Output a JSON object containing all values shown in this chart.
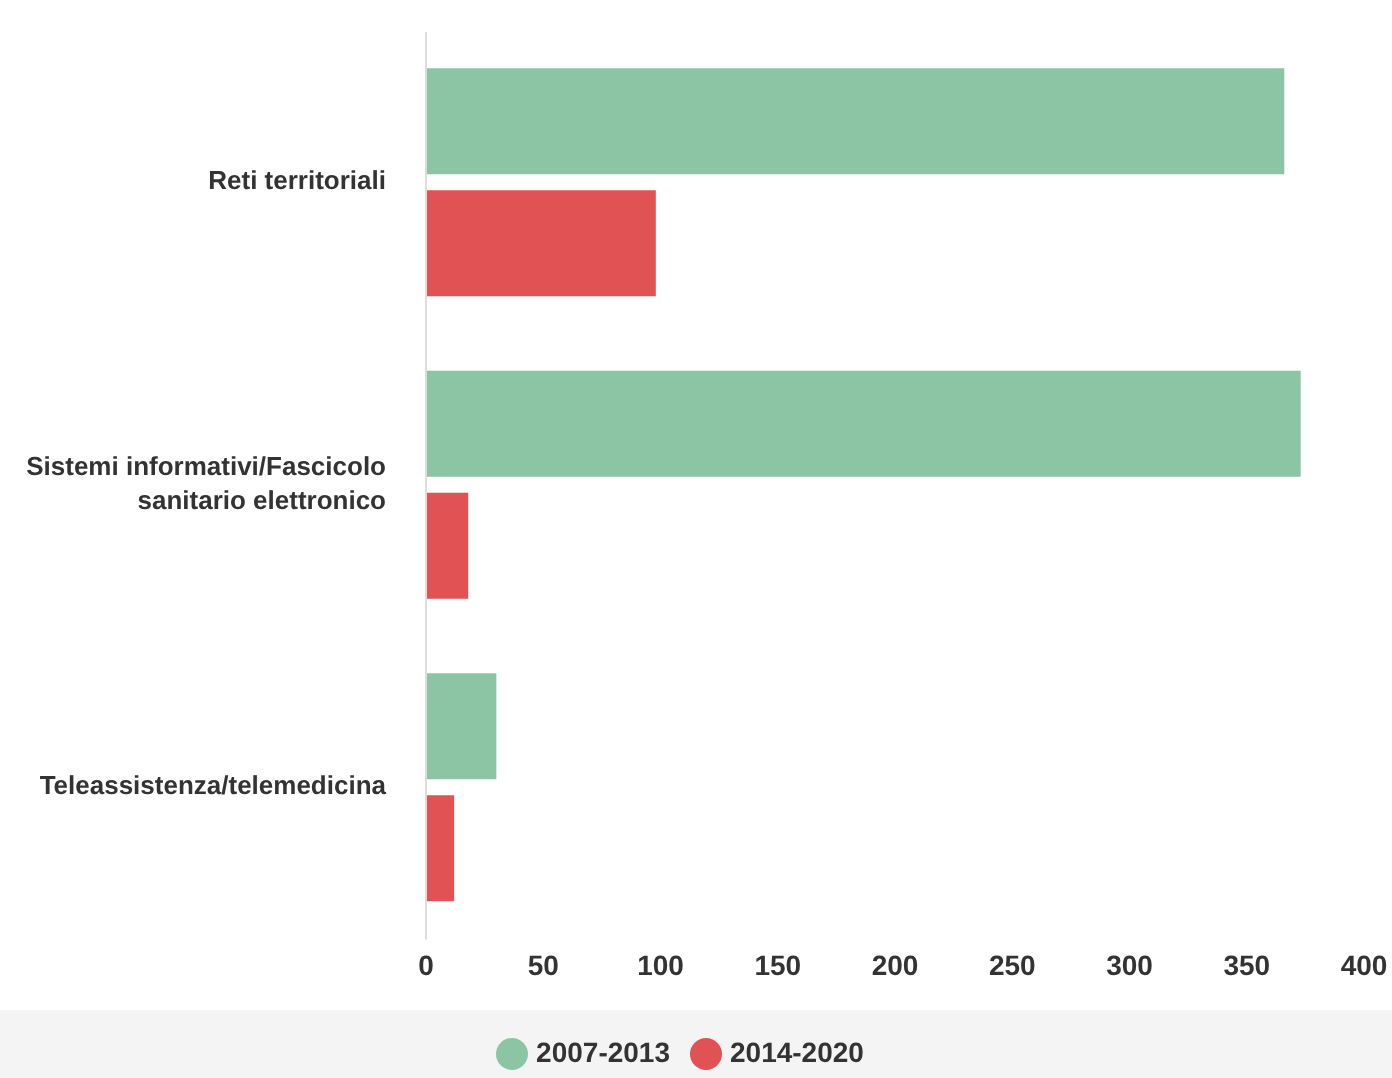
{
  "chart_data": {
    "type": "bar",
    "orientation": "horizontal",
    "categories": [
      "Reti territoriali",
      "Sistemi informativi/Fascicolo sanitario elettronico",
      "Teleassistenza/telemedicina"
    ],
    "series": [
      {
        "name": "2007-2013",
        "color": "#8cc5a3",
        "values": [
          366,
          373,
          30
        ]
      },
      {
        "name": "2014-2020",
        "color": "#e05254",
        "values": [
          98,
          18,
          12
        ]
      }
    ],
    "xlim": [
      0,
      400
    ],
    "xticks": [
      0,
      50,
      100,
      150,
      200,
      250,
      300,
      350,
      400
    ],
    "grid": false,
    "legend": "bottom"
  }
}
